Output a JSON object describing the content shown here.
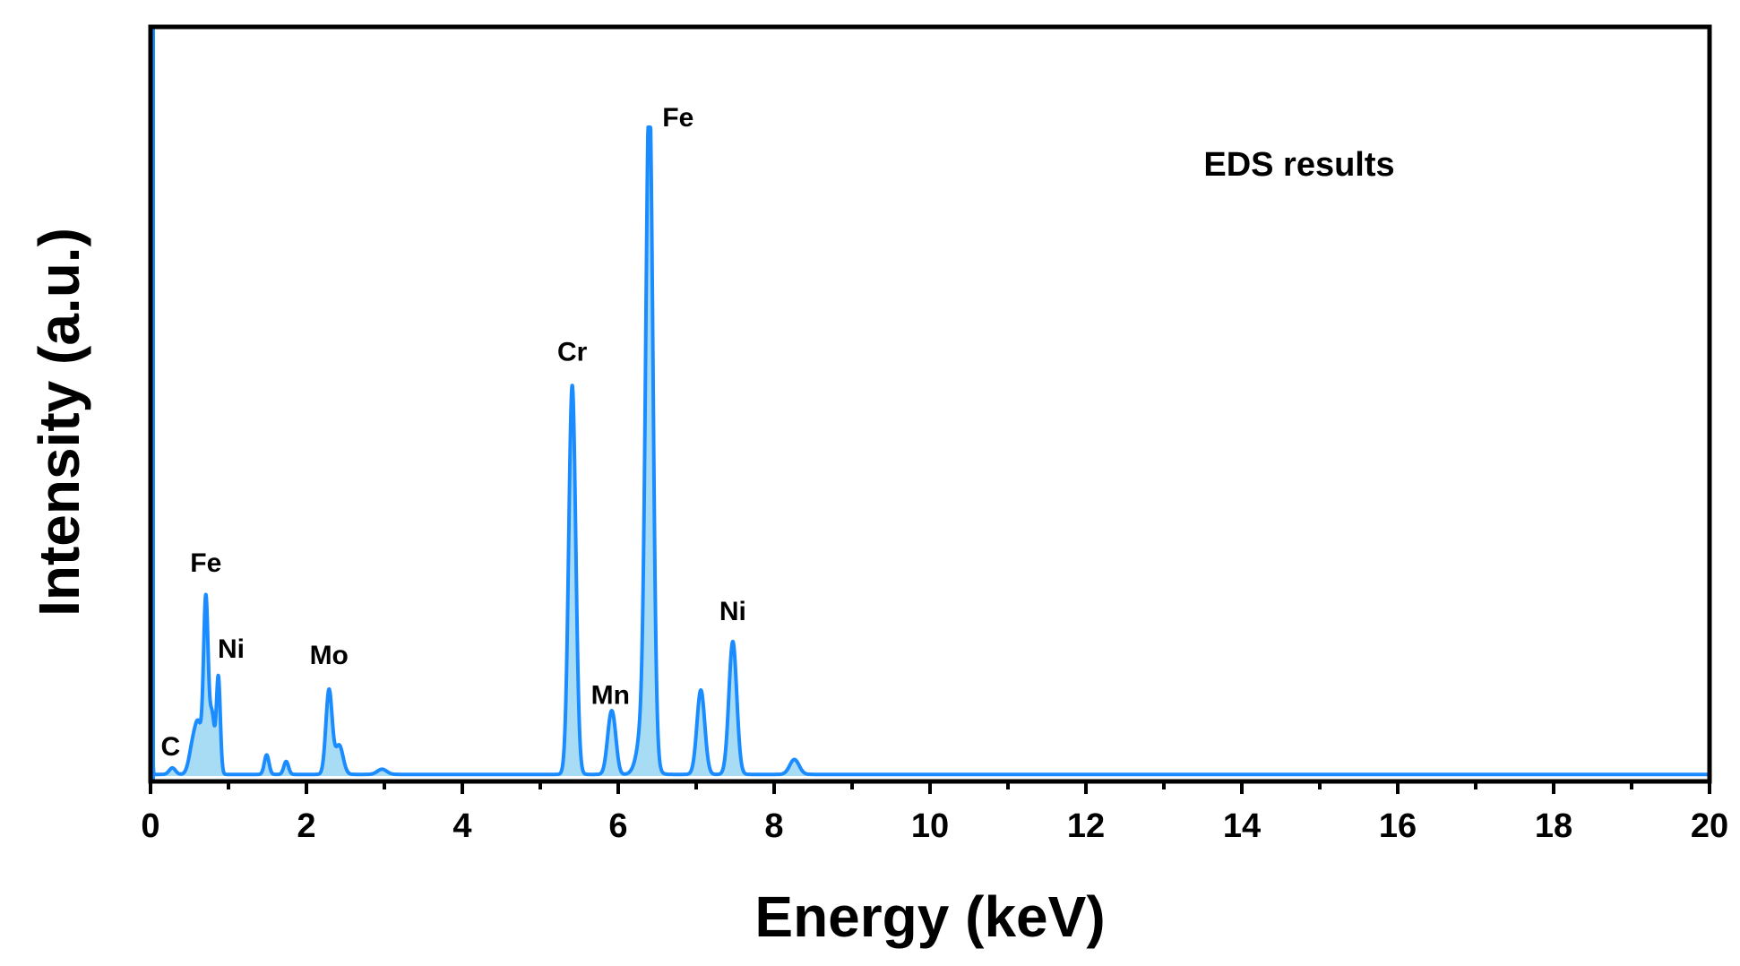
{
  "chart_data": {
    "type": "area",
    "title": "",
    "xlabel": "Energy (keV)",
    "ylabel": "Intensity (a.u.)",
    "xlim": [
      0,
      20
    ],
    "ylim": [
      0,
      100
    ],
    "xticks_major": [
      "0",
      "2",
      "4",
      "6",
      "8",
      "10",
      "12",
      "14",
      "16",
      "18",
      "20"
    ],
    "xticks_minor_step": 1,
    "y_tick_labels_shown": false,
    "grid": false,
    "legend": "none",
    "annotation": "EDS results",
    "colors": {
      "line": "#1a8cff",
      "fill": "#a8dcf4",
      "axes": "#000000"
    },
    "peaks": [
      {
        "element": "C",
        "energy": 0.28,
        "intensity": 1.0
      },
      {
        "element": "Fe",
        "energy": 0.71,
        "intensity": 29.0
      },
      {
        "element": "Ni",
        "energy": 0.85,
        "intensity": 16.0
      },
      {
        "element": "Mo",
        "energy": 2.29,
        "intensity": 14.5
      },
      {
        "element": "Cr",
        "energy": 5.41,
        "intensity": 61.0
      },
      {
        "element": "Mn",
        "energy": 5.9,
        "intensity": 7.5
      },
      {
        "element": "Fe",
        "energy": 6.4,
        "intensity": 99.0
      },
      {
        "element": "Ni",
        "energy": 7.47,
        "intensity": 21.0
      }
    ],
    "labels": [
      {
        "text": "C",
        "energy": 0.28,
        "intensity": 1.0
      },
      {
        "text": "Fe",
        "energy": 0.71,
        "intensity": 29.0
      },
      {
        "text": "Ni",
        "energy": 0.85,
        "intensity": 16.0
      },
      {
        "text": "Mo",
        "energy": 2.29,
        "intensity": 14.5
      },
      {
        "text": "Cr",
        "energy": 5.41,
        "intensity": 61.0
      },
      {
        "text": "Mn",
        "energy": 5.9,
        "intensity": 7.5
      },
      {
        "text": "Fe",
        "energy": 6.4,
        "intensity": 99.0
      },
      {
        "text": "Ni",
        "energy": 7.47,
        "intensity": 21.0
      }
    ],
    "spectrum_components": [
      {
        "energy": 0.0,
        "intensity": 100.0,
        "width": 0.012
      },
      {
        "energy": 0.28,
        "intensity": 1.0,
        "width": 0.04
      },
      {
        "energy": 0.55,
        "intensity": 5.0,
        "width": 0.05
      },
      {
        "energy": 0.62,
        "intensity": 6.0,
        "width": 0.04
      },
      {
        "energy": 0.71,
        "intensity": 27.0,
        "width": 0.03
      },
      {
        "energy": 0.79,
        "intensity": 9.0,
        "width": 0.03
      },
      {
        "energy": 0.87,
        "intensity": 15.0,
        "width": 0.025
      },
      {
        "energy": 1.49,
        "intensity": 3.0,
        "width": 0.03
      },
      {
        "energy": 1.74,
        "intensity": 2.0,
        "width": 0.03
      },
      {
        "energy": 2.29,
        "intensity": 13.0,
        "width": 0.04
      },
      {
        "energy": 2.42,
        "intensity": 4.5,
        "width": 0.05
      },
      {
        "energy": 2.97,
        "intensity": 0.8,
        "width": 0.06
      },
      {
        "energy": 5.41,
        "intensity": 60.0,
        "width": 0.045
      },
      {
        "energy": 5.9,
        "intensity": 7.5,
        "width": 0.045
      },
      {
        "energy": 5.95,
        "intensity": 4.0,
        "width": 0.04
      },
      {
        "energy": 6.4,
        "intensity": 98.5,
        "width": 0.045
      },
      {
        "energy": 6.35,
        "intensity": 10.0,
        "width": 0.08
      },
      {
        "energy": 7.06,
        "intensity": 13.0,
        "width": 0.05
      },
      {
        "energy": 7.47,
        "intensity": 20.5,
        "width": 0.05
      },
      {
        "energy": 8.26,
        "intensity": 2.3,
        "width": 0.06
      }
    ]
  }
}
